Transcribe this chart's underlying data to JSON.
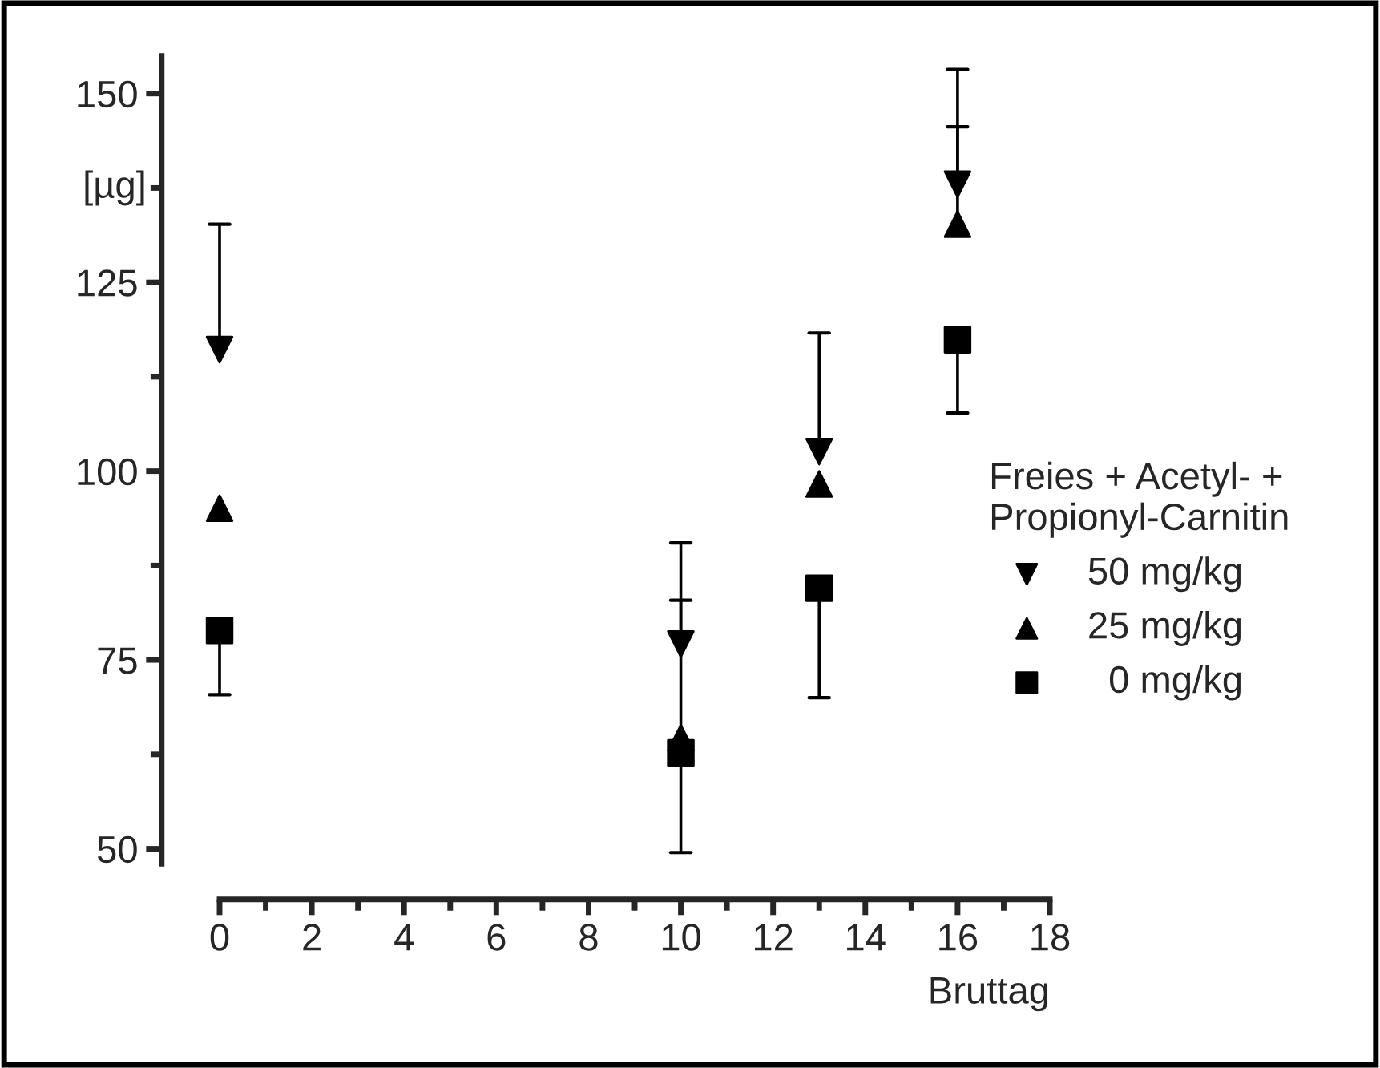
{
  "chart_data": {
    "type": "scatter",
    "xlabel": "Bruttag",
    "ylabel": "[µg]",
    "legend_title": "Freies + Acetyl- +\nPropionyl-Carnitin",
    "xlim": [
      0,
      18
    ],
    "xticks": [
      0,
      2,
      4,
      6,
      8,
      10,
      12,
      14,
      16,
      18
    ],
    "ylim": [
      48,
      155
    ],
    "yticks": [
      50,
      75,
      100,
      125,
      150
    ],
    "legend": "right",
    "grid": false,
    "series": [
      {
        "name": "50 mg/kg",
        "color": "#000000",
        "marker": "triangle_down",
        "x": [
          0,
          10,
          13,
          16
        ],
        "values": [
          116.1,
          77.1,
          102.6,
          138.0
        ],
        "errors": [
          [
            116.1,
            132.7
          ],
          [
            77.1,
            90.5
          ],
          [
            102.6,
            118.3
          ],
          [
            138.0,
            153.2
          ]
        ]
      },
      {
        "name": "25 mg/kg",
        "color": "#000000",
        "marker": "triangle",
        "x": [
          0,
          10,
          13,
          16
        ],
        "values": [
          95.1,
          64.7,
          98.3,
          132.7
        ],
        "errors": [
          null,
          [
            64.7,
            82.9
          ],
          null,
          [
            132.7,
            145.6
          ]
        ]
      },
      {
        "name": "  0 mg/kg",
        "color": "#000000",
        "marker": "square",
        "x": [
          0,
          10,
          13,
          16
        ],
        "values": [
          78.9,
          62.7,
          84.5,
          117.4
        ],
        "errors": [
          [
            70.4,
            78.9
          ],
          [
            49.5,
            62.7
          ],
          [
            70.0,
            84.5
          ],
          [
            107.7,
            117.4
          ]
        ]
      }
    ]
  }
}
